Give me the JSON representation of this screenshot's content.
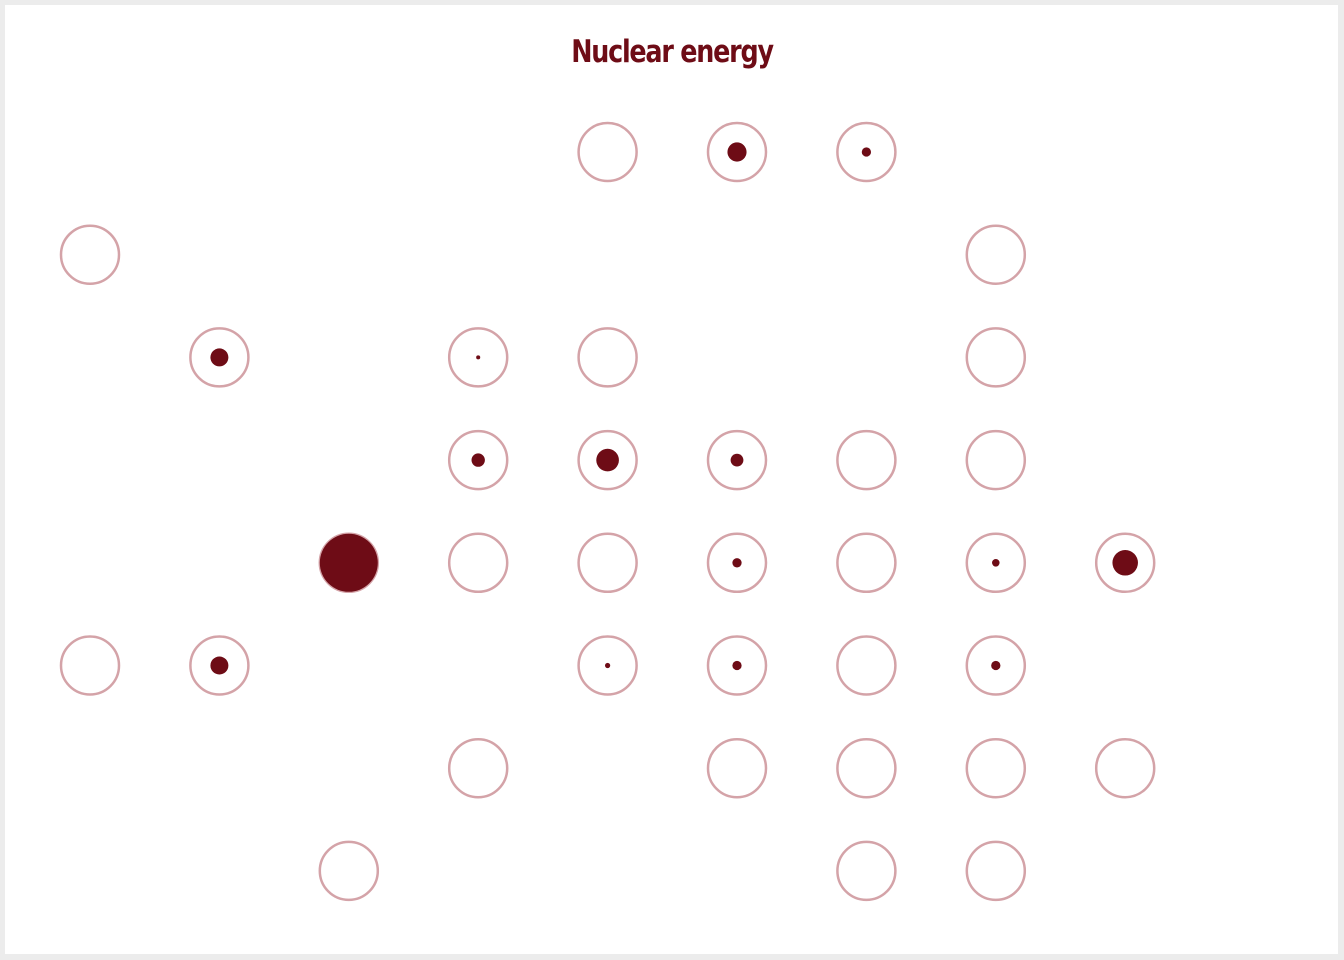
{
  "chart_data": {
    "type": "scatter",
    "title": "Nuclear energy",
    "colors": {
      "fill": "#6e0c16",
      "ring": "#d4a3a8",
      "background": "#ffffff"
    },
    "points": [
      {
        "col": 4,
        "row": 0,
        "value": 0
      },
      {
        "col": 5,
        "row": 0,
        "value": 0.33
      },
      {
        "col": 6,
        "row": 0,
        "value": 0.16
      },
      {
        "col": 0,
        "row": 1,
        "value": 0
      },
      {
        "col": 7,
        "row": 1,
        "value": 0
      },
      {
        "col": 1,
        "row": 2,
        "value": 0.31
      },
      {
        "col": 3,
        "row": 2,
        "value": 0.07
      },
      {
        "col": 4,
        "row": 2,
        "value": 0
      },
      {
        "col": 7,
        "row": 2,
        "value": 0
      },
      {
        "col": 3,
        "row": 3,
        "value": 0.23
      },
      {
        "col": 4,
        "row": 3,
        "value": 0.39
      },
      {
        "col": 5,
        "row": 3,
        "value": 0.22
      },
      {
        "col": 6,
        "row": 3,
        "value": 0
      },
      {
        "col": 7,
        "row": 3,
        "value": 0
      },
      {
        "col": 2,
        "row": 4,
        "value": 1.0
      },
      {
        "col": 3,
        "row": 4,
        "value": 0
      },
      {
        "col": 4,
        "row": 4,
        "value": 0
      },
      {
        "col": 5,
        "row": 4,
        "value": 0.16
      },
      {
        "col": 6,
        "row": 4,
        "value": 0
      },
      {
        "col": 7,
        "row": 4,
        "value": 0.13
      },
      {
        "col": 8,
        "row": 4,
        "value": 0.44
      },
      {
        "col": 0,
        "row": 5,
        "value": 0
      },
      {
        "col": 1,
        "row": 5,
        "value": 0.31
      },
      {
        "col": 4,
        "row": 5,
        "value": 0.09
      },
      {
        "col": 5,
        "row": 5,
        "value": 0.16
      },
      {
        "col": 7,
        "row": 5,
        "value": 0.16
      },
      {
        "col": 6,
        "row": 5,
        "value": 0
      },
      {
        "col": 10,
        "row": 5,
        "value": 0
      },
      {
        "col": 3,
        "row": 6,
        "value": 0
      },
      {
        "col": 5,
        "row": 6,
        "value": 0
      },
      {
        "col": 6,
        "row": 6,
        "value": 0
      },
      {
        "col": 7,
        "row": 6,
        "value": 0
      },
      {
        "col": 8,
        "row": 6,
        "value": 0
      },
      {
        "col": 2,
        "row": 7,
        "value": 0
      },
      {
        "col": 6,
        "row": 7,
        "value": 0
      },
      {
        "col": 7,
        "row": 7,
        "value": 0
      },
      {
        "col": 10,
        "row": 7,
        "value": 0
      }
    ]
  }
}
